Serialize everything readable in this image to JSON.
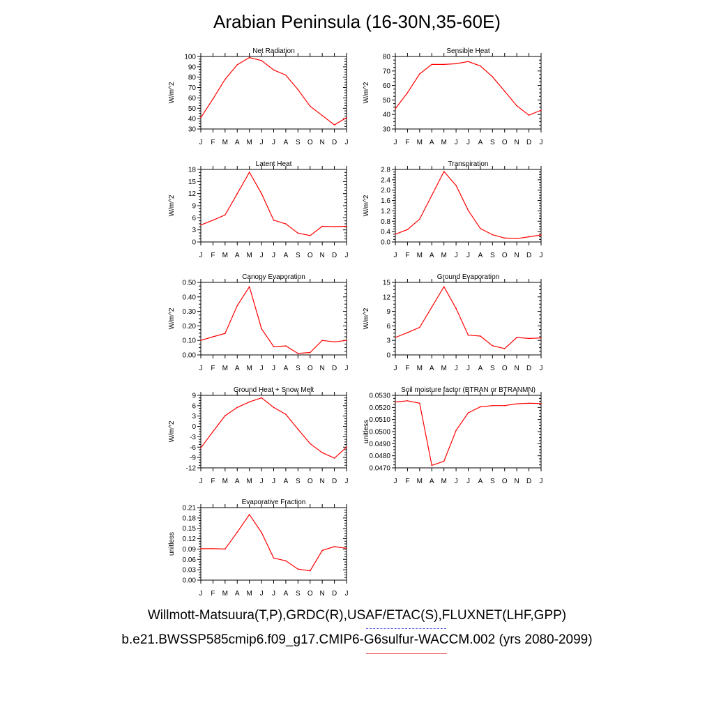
{
  "title": "Arabian Peninsula (16-30N,35-60E)",
  "colors": {
    "model_line": "#ff0000",
    "obs_key": "#5555ee",
    "case_key": "#ee5555"
  },
  "legend": {
    "observations": "Willmott-Matsuura(T,P),GRDC(R),USAF/ETAC(S),FLUXNET(LHF,GPP)",
    "case": "b.e21.BWSSP585cmip6.f09_g17.CMIP6-G6sulfur-WACCM.002 (yrs 2080-2099)"
  },
  "chart_data": [
    {
      "type": "line",
      "title": "Net Radiation",
      "ylabel": "W/m^2",
      "categories": [
        "J",
        "F",
        "M",
        "A",
        "M",
        "J",
        "J",
        "A",
        "S",
        "O",
        "N",
        "D",
        "J"
      ],
      "ylim": [
        30,
        100
      ],
      "yticks": [
        "30",
        "40",
        "50",
        "60",
        "70",
        "80",
        "90",
        "100"
      ],
      "values": [
        41,
        59,
        78,
        92,
        99,
        96,
        87,
        82,
        68,
        52,
        43,
        34,
        41
      ]
    },
    {
      "type": "line",
      "title": "Sensible Heat",
      "ylabel": "W/m^2",
      "categories": [
        "J",
        "F",
        "M",
        "A",
        "M",
        "J",
        "J",
        "A",
        "S",
        "O",
        "N",
        "D",
        "J"
      ],
      "ylim": [
        30,
        80
      ],
      "yticks": [
        "30",
        "40",
        "50",
        "60",
        "70",
        "80"
      ],
      "values": [
        44,
        55,
        68,
        74.5,
        74.5,
        75,
        76.5,
        73.5,
        66,
        56,
        46,
        39.5,
        43
      ]
    },
    {
      "type": "line",
      "title": "Latent Heat",
      "ylabel": "W/m^2",
      "categories": [
        "J",
        "F",
        "M",
        "A",
        "M",
        "J",
        "J",
        "A",
        "S",
        "O",
        "N",
        "D",
        "J"
      ],
      "ylim": [
        0,
        18
      ],
      "yticks": [
        "0",
        "3",
        "6",
        "9",
        "12",
        "15",
        "18"
      ],
      "values": [
        4.2,
        5.4,
        6.7,
        12,
        17.3,
        12,
        5.4,
        4.5,
        2.2,
        1.6,
        3.9,
        3.8,
        3.9
      ]
    },
    {
      "type": "line",
      "title": "Transpiration",
      "ylabel": "W/m^2",
      "categories": [
        "J",
        "F",
        "M",
        "A",
        "M",
        "J",
        "J",
        "A",
        "S",
        "O",
        "N",
        "D",
        "J"
      ],
      "ylim": [
        0,
        2.8
      ],
      "yticks": [
        "0.0",
        "0.4",
        "0.8",
        "1.2",
        "1.6",
        "2.0",
        "2.4",
        "2.8"
      ],
      "values": [
        0.3,
        0.48,
        0.88,
        1.8,
        2.72,
        2.18,
        1.22,
        0.52,
        0.28,
        0.15,
        0.13,
        0.2,
        0.27
      ]
    },
    {
      "type": "line",
      "title": "Canopy Evaporation",
      "ylabel": "W/m^2",
      "categories": [
        "J",
        "F",
        "M",
        "A",
        "M",
        "J",
        "J",
        "A",
        "S",
        "O",
        "N",
        "D",
        "J"
      ],
      "ylim": [
        0,
        0.5
      ],
      "yticks": [
        "0.00",
        "0.10",
        "0.20",
        "0.30",
        "0.40",
        "0.50"
      ],
      "values": [
        0.1,
        0.125,
        0.148,
        0.34,
        0.47,
        0.18,
        0.057,
        0.062,
        0.01,
        0.017,
        0.1,
        0.09,
        0.1
      ]
    },
    {
      "type": "line",
      "title": "Ground Evaporation",
      "ylabel": "W/m^2",
      "categories": [
        "J",
        "F",
        "M",
        "A",
        "M",
        "J",
        "J",
        "A",
        "S",
        "O",
        "N",
        "D",
        "J"
      ],
      "ylim": [
        0,
        15
      ],
      "yticks": [
        "0",
        "3",
        "6",
        "9",
        "12",
        "15"
      ],
      "values": [
        3.6,
        4.6,
        5.7,
        9.9,
        14.1,
        9.6,
        4.1,
        3.9,
        1.9,
        1.3,
        3.6,
        3.4,
        3.5
      ]
    },
    {
      "type": "line",
      "title": "Ground Heat + Snow Melt",
      "ylabel": "W/m^2",
      "categories": [
        "J",
        "F",
        "M",
        "A",
        "M",
        "J",
        "J",
        "A",
        "S",
        "O",
        "N",
        "D",
        "J"
      ],
      "ylim": [
        -12,
        9
      ],
      "yticks": [
        "-12",
        "-9",
        "-6",
        "-3",
        "0",
        "3",
        "6",
        "9"
      ],
      "values": [
        -6.2,
        -1.5,
        3.1,
        5.5,
        7.1,
        8.3,
        5.5,
        3.5,
        -0.8,
        -5,
        -7.6,
        -9.2,
        -6
      ]
    },
    {
      "type": "line",
      "title": "Soil moisture factor (BTRAN or BTRANMN)",
      "ylabel": "unitless",
      "categories": [
        "J",
        "F",
        "M",
        "A",
        "M",
        "J",
        "J",
        "A",
        "S",
        "O",
        "N",
        "D",
        "J"
      ],
      "ylim": [
        0.047,
        0.053
      ],
      "yticks": [
        "0.0470",
        "0.0480",
        "0.0490",
        "0.0500",
        "0.0510",
        "0.0520",
        "0.0530"
      ],
      "values": [
        0.05245,
        0.05255,
        0.05235,
        0.0472,
        0.04755,
        0.0501,
        0.05155,
        0.05205,
        0.05215,
        0.05215,
        0.0523,
        0.05235,
        0.05232
      ]
    },
    {
      "type": "line",
      "title": "Evaporative Fraction",
      "ylabel": "unitless",
      "categories": [
        "J",
        "F",
        "M",
        "A",
        "M",
        "J",
        "J",
        "A",
        "S",
        "O",
        "N",
        "D",
        "J"
      ],
      "ylim": [
        0,
        0.21
      ],
      "yticks": [
        "0.00",
        "0.03",
        "0.06",
        "0.09",
        "0.12",
        "0.15",
        "0.18",
        "0.21"
      ],
      "values": [
        0.091,
        0.091,
        0.09,
        0.139,
        0.19,
        0.138,
        0.064,
        0.056,
        0.032,
        0.027,
        0.086,
        0.097,
        0.092
      ]
    }
  ]
}
